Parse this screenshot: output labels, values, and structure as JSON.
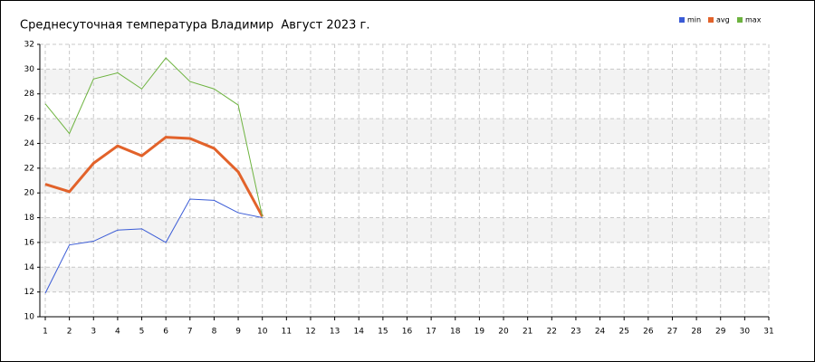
{
  "chart_data": {
    "type": "line",
    "title": "Среднесуточная температура Владимир  Август 2023 г.",
    "x": [
      1,
      2,
      3,
      4,
      5,
      6,
      7,
      8,
      9,
      10
    ],
    "series": [
      {
        "name": "min",
        "color": "#3a5bd6",
        "values": [
          11.9,
          15.8,
          16.1,
          17.0,
          17.1,
          16.0,
          19.5,
          19.4,
          18.4,
          18.0
        ]
      },
      {
        "name": "avg",
        "color": "#e2622a",
        "values": [
          20.7,
          20.1,
          22.4,
          23.8,
          23.0,
          24.5,
          24.4,
          23.6,
          21.7,
          18.1
        ]
      },
      {
        "name": "max",
        "color": "#6db33f",
        "values": [
          27.2,
          24.8,
          29.2,
          29.7,
          28.4,
          30.9,
          29.0,
          28.4,
          27.1,
          18.1
        ]
      }
    ],
    "xlim": [
      1,
      31
    ],
    "xticks": [
      1,
      2,
      3,
      4,
      5,
      6,
      7,
      8,
      9,
      10,
      11,
      12,
      13,
      14,
      15,
      16,
      17,
      18,
      19,
      20,
      21,
      22,
      23,
      24,
      25,
      26,
      27,
      28,
      29,
      30,
      31
    ],
    "ylim": [
      10,
      32
    ],
    "yticks": [
      10,
      12,
      14,
      16,
      18,
      20,
      22,
      24,
      26,
      28,
      30,
      32
    ],
    "grid": true,
    "legend": "top-right"
  }
}
